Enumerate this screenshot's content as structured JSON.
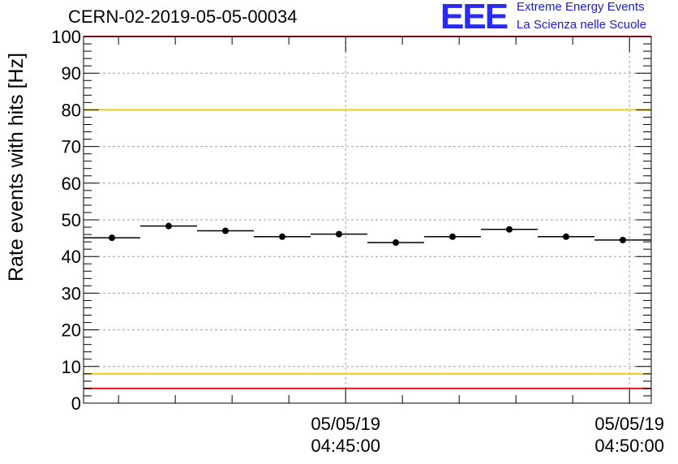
{
  "title": "CERN-02-2019-05-05-00034",
  "logo": {
    "mark": "EEE",
    "line1": "Extreme Energy Events",
    "line2": "La Scienza nelle Scuole"
  },
  "chart_data": {
    "type": "scatter",
    "ylabel": "Rate events with hits [Hz]",
    "ylim": [
      0,
      100
    ],
    "yticks": [
      0,
      10,
      20,
      30,
      40,
      50,
      60,
      70,
      80,
      90,
      100
    ],
    "xlim": [
      "2019-05-05 04:40:23",
      "2019-05-05 04:50:23"
    ],
    "xticks": [
      {
        "date": "05/05/19",
        "time": "04:45:00"
      },
      {
        "date": "05/05/19",
        "time": "04:50:00"
      }
    ],
    "grid": true,
    "reference_lines": [
      {
        "y": 100,
        "color": "#e8141c"
      },
      {
        "y": 80,
        "color": "#f2c918"
      },
      {
        "y": 8,
        "color": "#f2c918"
      },
      {
        "y": 4,
        "color": "#e8141c"
      }
    ],
    "series": [
      {
        "color": "#000000",
        "points": [
          {
            "x_start": "04:40:23",
            "x_end": "04:41:23",
            "y": 45.1
          },
          {
            "x_start": "04:41:23",
            "x_end": "04:42:23",
            "y": 48.3
          },
          {
            "x_start": "04:42:23",
            "x_end": "04:43:23",
            "y": 47.0
          },
          {
            "x_start": "04:43:23",
            "x_end": "04:44:23",
            "y": 45.4
          },
          {
            "x_start": "04:44:23",
            "x_end": "04:45:23",
            "y": 46.1
          },
          {
            "x_start": "04:45:23",
            "x_end": "04:46:23",
            "y": 43.8
          },
          {
            "x_start": "04:46:23",
            "x_end": "04:47:23",
            "y": 45.4
          },
          {
            "x_start": "04:47:23",
            "x_end": "04:48:23",
            "y": 47.4
          },
          {
            "x_start": "04:48:23",
            "x_end": "04:49:23",
            "y": 45.4
          },
          {
            "x_start": "04:49:23",
            "x_end": "04:50:23",
            "y": 44.5
          }
        ]
      }
    ]
  }
}
